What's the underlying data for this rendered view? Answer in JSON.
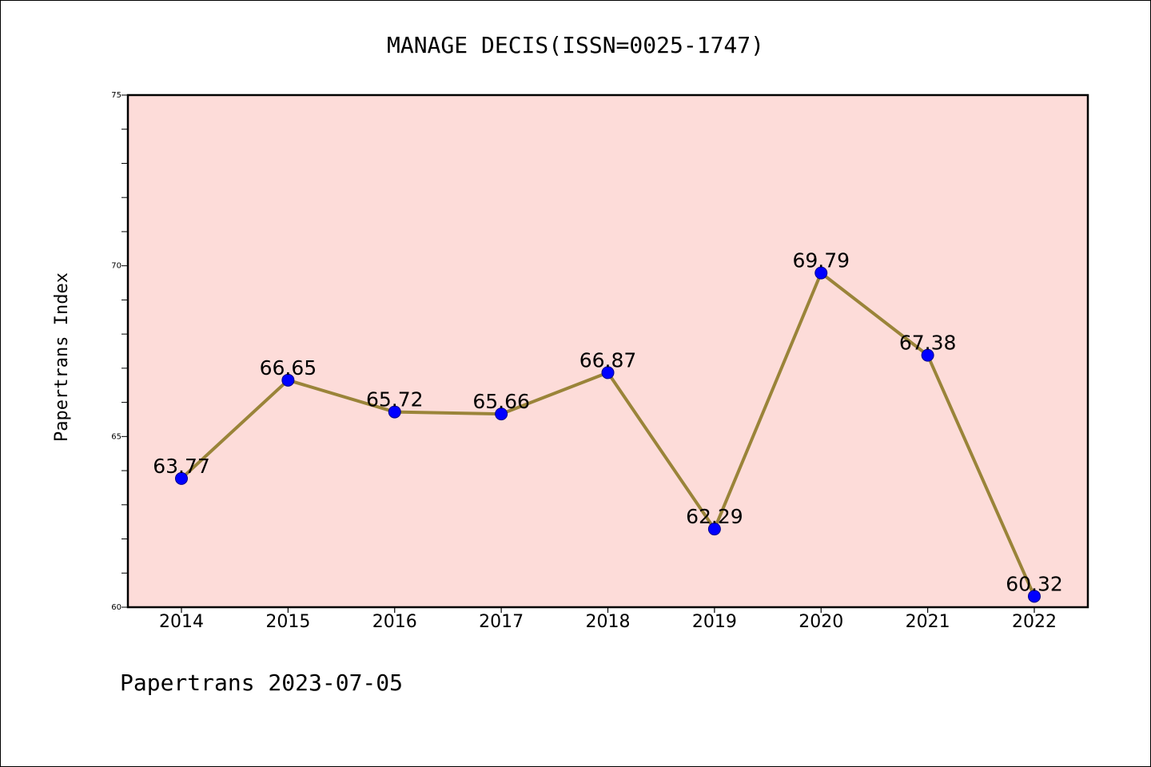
{
  "chart_data": {
    "type": "line",
    "title": "MANAGE DECIS(ISSN=0025-1747)",
    "xlabel": "",
    "ylabel": "Papertrans Index",
    "x": [
      "2014",
      "2015",
      "2016",
      "2017",
      "2018",
      "2019",
      "2020",
      "2021",
      "2022"
    ],
    "series": [
      {
        "values": [
          63.77,
          66.65,
          65.72,
          65.66,
          66.87,
          62.29,
          69.79,
          67.38,
          60.32
        ],
        "labels": [
          "63.77",
          "66.65",
          "65.72",
          "65.66",
          "66.87",
          "62.29",
          "69.79",
          "67.38",
          "60.32"
        ]
      }
    ],
    "ylim": [
      60,
      75
    ],
    "yticks": [
      "60",
      "65",
      "70",
      "75"
    ],
    "grid": false,
    "legend": "none",
    "colors": {
      "line": "#9a8439",
      "marker": "#0000ff",
      "marker_edge": "#00008b",
      "plot_background": "#fddcd9",
      "axes": "#000000"
    }
  },
  "footer": "Papertrans 2023-07-05"
}
